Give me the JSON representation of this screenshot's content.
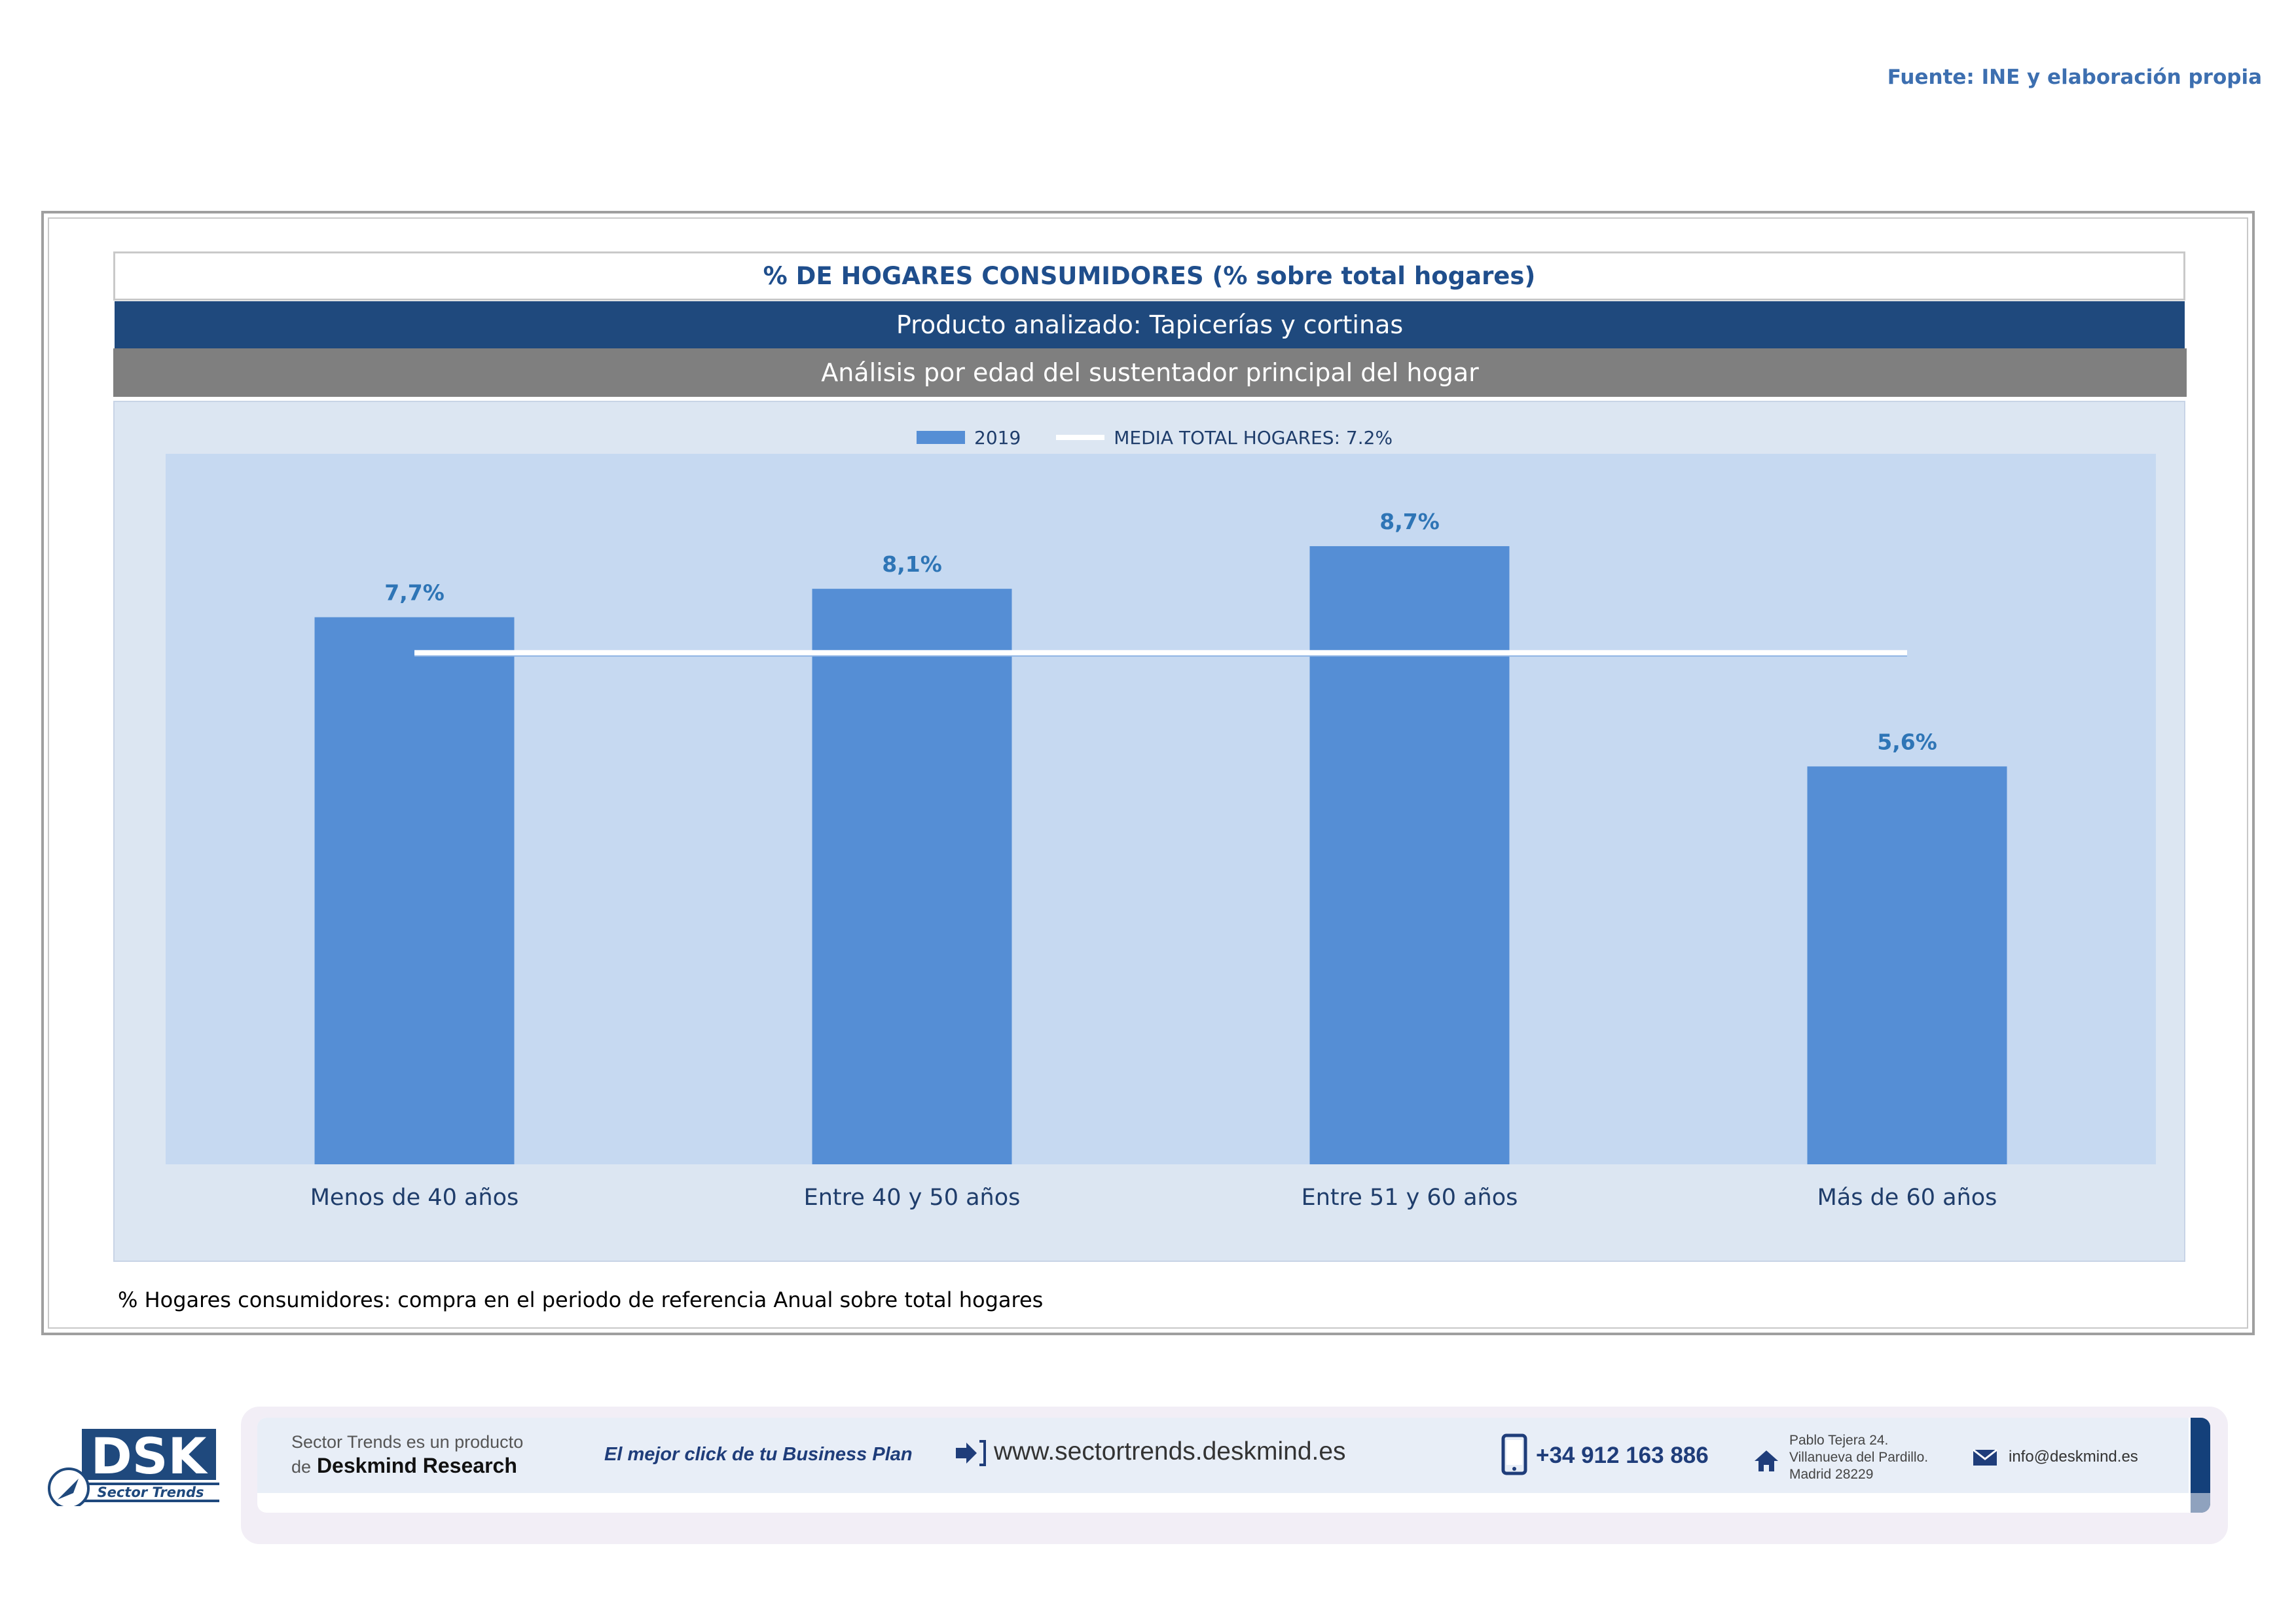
{
  "source": "Fuente: INE y elaboración propia",
  "header": {
    "title": "% DE HOGARES CONSUMIDORES (% sobre total hogares)",
    "product": "Producto analizado: Tapicerías y cortinas",
    "analysis": "Análisis por edad del sustentador principal del hogar"
  },
  "legend": {
    "series_label": "2019",
    "average_label": "MEDIA TOTAL  HOGARES:  7.2%"
  },
  "colors": {
    "bar": "#558ed5",
    "average_line": "#ffffff",
    "data_label": "#2e75b6"
  },
  "chart_data": {
    "type": "bar",
    "categories": [
      "Menos de 40 años",
      "Entre 40 y 50 años",
      "Entre 51  y 60 años",
      "Más de 60 años"
    ],
    "series": [
      {
        "name": "2019",
        "values": [
          7.7,
          8.1,
          8.7,
          5.6
        ],
        "labels": [
          "7,7%",
          "8,1%",
          "8,7%",
          "5,6%"
        ]
      }
    ],
    "average": {
      "name": "MEDIA TOTAL  HOGARES",
      "value": 7.2
    },
    "ylim": [
      0,
      10
    ],
    "grid": false,
    "legend_position": "top"
  },
  "footnote": "% Hogares consumidores: compra en el periodo de referencia Anual sobre total hogares",
  "footer": {
    "logo_text": "DSK",
    "logo_subtitle": "Sector Trends",
    "product_line1": "Sector Trends es un producto",
    "product_line2_prefix": "de",
    "product_line2_brand": "Deskmind Research",
    "slogan": "El mejor click de tu Business Plan",
    "website": "www.sectortrends.deskmind.es",
    "phone": "+34 912 163 886",
    "address_line1": "Pablo Tejera 24.",
    "address_line2": "Villanueva del Pardillo.",
    "address_line3": "Madrid 28229",
    "email": "info@deskmind.es",
    "icons": [
      "arrow-icon",
      "phone-icon",
      "home-icon",
      "mail-icon"
    ]
  }
}
